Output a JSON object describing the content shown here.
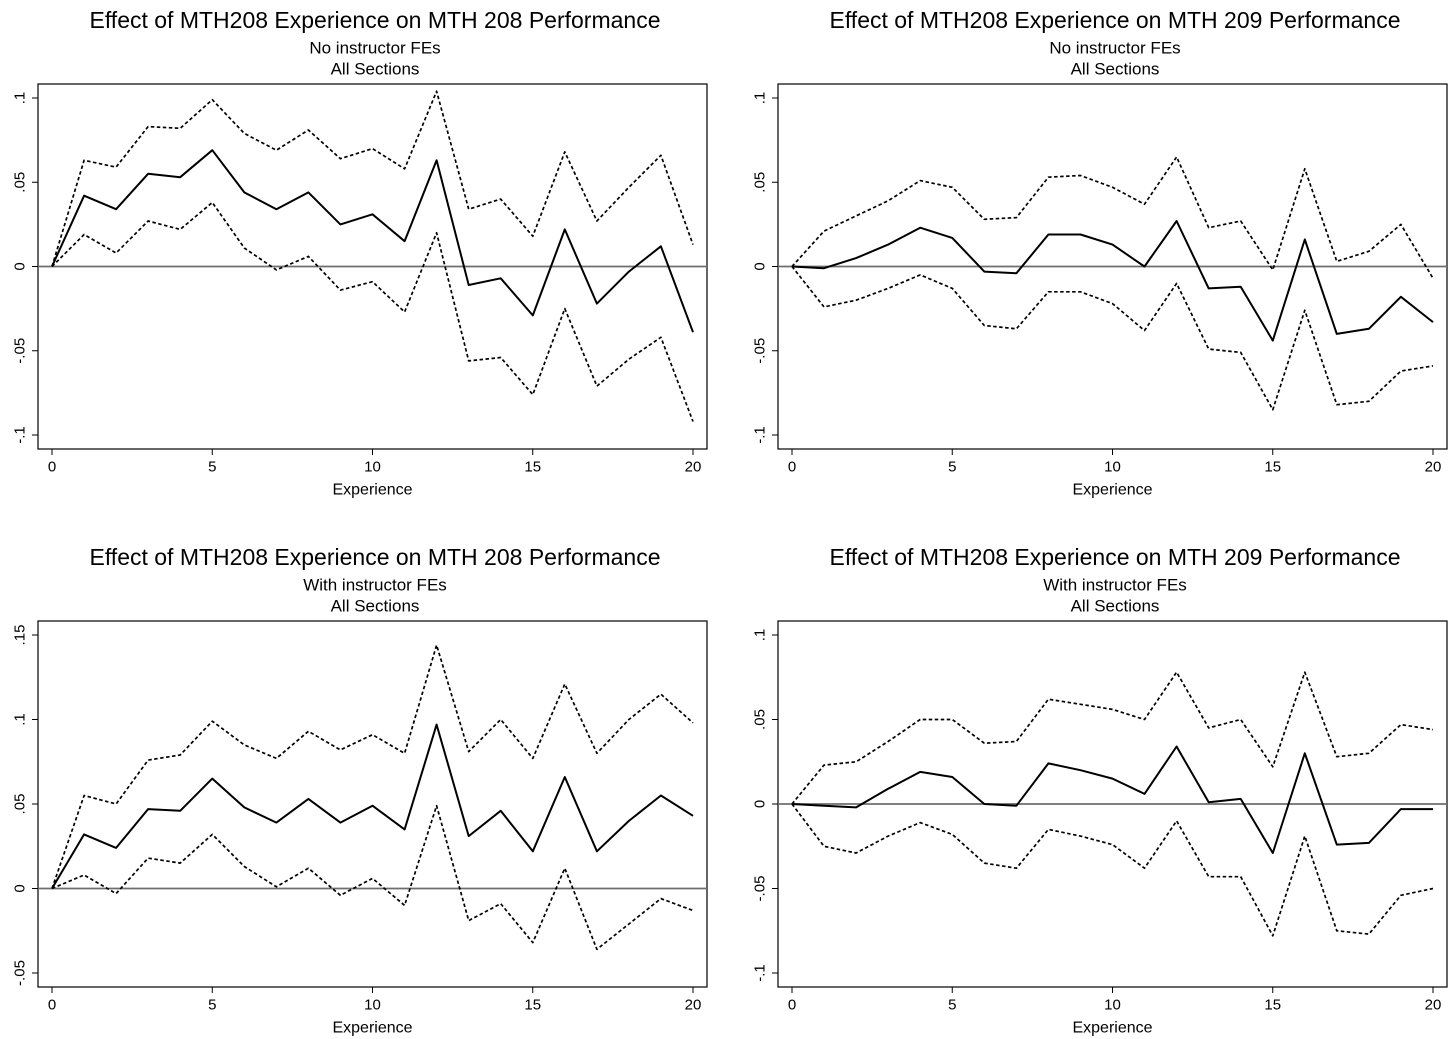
{
  "chart_data": [
    {
      "type": "line",
      "title": "Effect of MTH208 Experience on MTH 208 Performance",
      "subtitle": [
        "No instructor FEs",
        "All Sections"
      ],
      "xlabel": "Experience",
      "ylabel": "",
      "xlim": [
        0,
        20
      ],
      "ylim": [
        -0.1,
        0.1
      ],
      "x_ticks": [
        0,
        5,
        10,
        15,
        20
      ],
      "x_tick_labels": [
        "0",
        "5",
        "10",
        "15",
        "20"
      ],
      "y_ticks": [
        -0.1,
        -0.05,
        0,
        0.05,
        0.1
      ],
      "y_tick_labels": [
        "-.1",
        "-.05",
        "0",
        ".05",
        ".1"
      ],
      "zero_line": true,
      "x": [
        0,
        1,
        2,
        3,
        4,
        5,
        6,
        7,
        8,
        9,
        10,
        11,
        12,
        13,
        14,
        15,
        16,
        17,
        18,
        19,
        20
      ],
      "series": [
        {
          "style": "solid",
          "values": [
            0,
            0.042,
            0.034,
            0.055,
            0.053,
            0.069,
            0.044,
            0.034,
            0.044,
            0.025,
            0.031,
            0.015,
            0.063,
            -0.011,
            -0.007,
            -0.029,
            0.022,
            -0.022,
            -0.003,
            0.012,
            -0.039
          ]
        },
        {
          "style": "dashed",
          "values": [
            0,
            0.063,
            0.059,
            0.083,
            0.082,
            0.099,
            0.079,
            0.069,
            0.081,
            0.064,
            0.07,
            0.058,
            0.104,
            0.034,
            0.04,
            0.018,
            0.068,
            0.027,
            0.047,
            0.066,
            0.013
          ]
        },
        {
          "style": "dashed",
          "values": [
            0,
            0.019,
            0.008,
            0.027,
            0.022,
            0.038,
            0.011,
            -0.002,
            0.006,
            -0.014,
            -0.009,
            -0.027,
            0.02,
            -0.056,
            -0.054,
            -0.076,
            -0.025,
            -0.071,
            -0.055,
            -0.042,
            -0.092
          ]
        }
      ]
    },
    {
      "type": "line",
      "title": "Effect of MTH208 Experience on MTH 209 Performance",
      "subtitle": [
        "No instructor FEs",
        "All Sections"
      ],
      "xlabel": "Experience",
      "ylabel": "",
      "xlim": [
        0,
        20
      ],
      "ylim": [
        -0.1,
        0.1
      ],
      "x_ticks": [
        0,
        5,
        10,
        15,
        20
      ],
      "x_tick_labels": [
        "0",
        "5",
        "10",
        "15",
        "20"
      ],
      "y_ticks": [
        -0.1,
        -0.05,
        0,
        0.05,
        0.1
      ],
      "y_tick_labels": [
        "-.1",
        "-.05",
        "0",
        ".05",
        ".1"
      ],
      "zero_line": true,
      "x": [
        0,
        1,
        2,
        3,
        4,
        5,
        6,
        7,
        8,
        9,
        10,
        11,
        12,
        13,
        14,
        15,
        16,
        17,
        18,
        19,
        20
      ],
      "series": [
        {
          "style": "solid",
          "values": [
            0,
            -0.001,
            0.005,
            0.013,
            0.023,
            0.017,
            -0.003,
            -0.004,
            0.019,
            0.019,
            0.013,
            0,
            0.027,
            -0.013,
            -0.012,
            -0.044,
            0.016,
            -0.04,
            -0.037,
            -0.018,
            -0.033
          ]
        },
        {
          "style": "dashed",
          "values": [
            0,
            0.021,
            0.03,
            0.039,
            0.051,
            0.047,
            0.028,
            0.029,
            0.053,
            0.054,
            0.047,
            0.037,
            0.065,
            0.023,
            0.027,
            -0.002,
            0.058,
            0.003,
            0.009,
            0.025,
            -0.007
          ]
        },
        {
          "style": "dashed",
          "values": [
            0,
            -0.024,
            -0.02,
            -0.013,
            -0.005,
            -0.013,
            -0.035,
            -0.037,
            -0.015,
            -0.015,
            -0.022,
            -0.038,
            -0.01,
            -0.049,
            -0.051,
            -0.085,
            -0.026,
            -0.082,
            -0.08,
            -0.062,
            -0.059
          ]
        }
      ]
    },
    {
      "type": "line",
      "title": "Effect of MTH208 Experience on MTH 208 Performance",
      "subtitle": [
        "With instructor FEs",
        "All Sections"
      ],
      "xlabel": "Experience",
      "ylabel": "",
      "xlim": [
        0,
        20
      ],
      "ylim": [
        -0.05,
        0.15
      ],
      "x_ticks": [
        0,
        5,
        10,
        15,
        20
      ],
      "x_tick_labels": [
        "0",
        "5",
        "10",
        "15",
        "20"
      ],
      "y_ticks": [
        -0.05,
        0,
        0.05,
        0.1,
        0.15
      ],
      "y_tick_labels": [
        "-.05",
        "0",
        ".05",
        ".1",
        ".15"
      ],
      "zero_line": true,
      "x": [
        0,
        1,
        2,
        3,
        4,
        5,
        6,
        7,
        8,
        9,
        10,
        11,
        12,
        13,
        14,
        15,
        16,
        17,
        18,
        19,
        20
      ],
      "series": [
        {
          "style": "solid",
          "values": [
            0,
            0.032,
            0.024,
            0.047,
            0.046,
            0.065,
            0.048,
            0.039,
            0.053,
            0.039,
            0.049,
            0.035,
            0.097,
            0.031,
            0.046,
            0.022,
            0.066,
            0.022,
            0.04,
            0.055,
            0.043
          ]
        },
        {
          "style": "dashed",
          "values": [
            0,
            0.055,
            0.05,
            0.076,
            0.079,
            0.099,
            0.085,
            0.077,
            0.093,
            0.082,
            0.091,
            0.08,
            0.144,
            0.081,
            0.1,
            0.077,
            0.121,
            0.08,
            0.1,
            0.115,
            0.098
          ]
        },
        {
          "style": "dashed",
          "values": [
            0,
            0.008,
            -0.003,
            0.018,
            0.015,
            0.032,
            0.013,
            0.001,
            0.012,
            -0.004,
            0.006,
            -0.01,
            0.049,
            -0.019,
            -0.009,
            -0.032,
            0.012,
            -0.036,
            -0.021,
            -0.006,
            -0.013
          ]
        }
      ]
    },
    {
      "type": "line",
      "title": "Effect of MTH208 Experience on MTH 209 Performance",
      "subtitle": [
        "With instructor FEs",
        "All Sections"
      ],
      "xlabel": "Experience",
      "ylabel": "",
      "xlim": [
        0,
        20
      ],
      "ylim": [
        -0.1,
        0.1
      ],
      "x_ticks": [
        0,
        5,
        10,
        15,
        20
      ],
      "x_tick_labels": [
        "0",
        "5",
        "10",
        "15",
        "20"
      ],
      "y_ticks": [
        -0.1,
        -0.05,
        0,
        0.05,
        0.1
      ],
      "y_tick_labels": [
        "-.1",
        "-.05",
        "0",
        ".05",
        ".1"
      ],
      "zero_line": true,
      "x": [
        0,
        1,
        2,
        3,
        4,
        5,
        6,
        7,
        8,
        9,
        10,
        11,
        12,
        13,
        14,
        15,
        16,
        17,
        18,
        19,
        20
      ],
      "series": [
        {
          "style": "solid",
          "values": [
            0,
            -0.001,
            -0.002,
            0.009,
            0.019,
            0.016,
            0,
            -0.001,
            0.024,
            0.02,
            0.015,
            0.006,
            0.034,
            0.001,
            0.003,
            -0.029,
            0.03,
            -0.024,
            -0.023,
            -0.003,
            -0.003
          ]
        },
        {
          "style": "dashed",
          "values": [
            0,
            0.023,
            0.025,
            0.037,
            0.05,
            0.05,
            0.036,
            0.037,
            0.062,
            0.059,
            0.056,
            0.05,
            0.078,
            0.045,
            0.05,
            0.022,
            0.078,
            0.028,
            0.03,
            0.047,
            0.044
          ]
        },
        {
          "style": "dashed",
          "values": [
            0,
            -0.025,
            -0.029,
            -0.019,
            -0.011,
            -0.018,
            -0.035,
            -0.038,
            -0.015,
            -0.019,
            -0.024,
            -0.038,
            -0.01,
            -0.043,
            -0.043,
            -0.078,
            -0.019,
            -0.075,
            -0.077,
            -0.054,
            -0.05
          ]
        }
      ]
    }
  ]
}
